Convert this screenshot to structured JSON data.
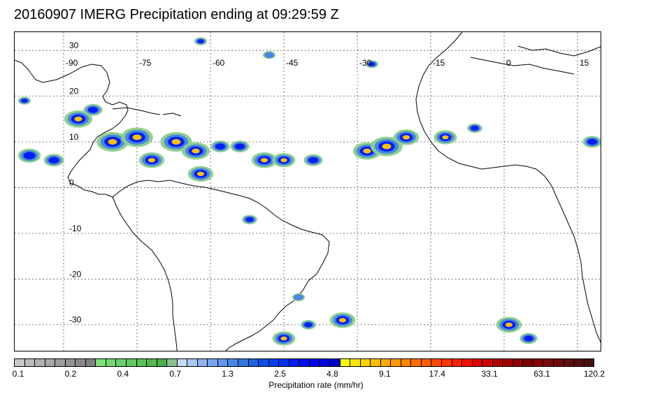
{
  "title": "20160907 IMERG Precipitation ending at 09:29:59 Z",
  "map": {
    "lon_labels": [
      "-90",
      "-75",
      "-60",
      "-45",
      "-30",
      "-15",
      "0",
      "15"
    ],
    "lat_labels": [
      "30",
      "20",
      "10",
      "0",
      "-10",
      "-20",
      "-30"
    ],
    "grid_color": "#555555",
    "coast_color": "#000000"
  },
  "colorbar": {
    "label": "Precipitation rate (mm/hr)",
    "tick_labels": [
      "0.1",
      "0.2",
      "0.4",
      "0.7",
      "1.3",
      "2.5",
      "4.8",
      "9.1",
      "17.4",
      "33.1",
      "63.1",
      "120.2"
    ],
    "colors": [
      "#c8c8c8",
      "#bdbdbd",
      "#b2b2b2",
      "#a8a8a8",
      "#9d9d9d",
      "#939393",
      "#898989",
      "#808080",
      "#7ee07e",
      "#74d874",
      "#6bd06b",
      "#62c862",
      "#5ac05a",
      "#52b852",
      "#4ab04a",
      "#8bc28b",
      "#c8d8f8",
      "#aac6f4",
      "#8eb4f0",
      "#78a6ec",
      "#6096e8",
      "#4a86e4",
      "#3476e0",
      "#1e66dc",
      "#0a50e8",
      "#0040ec",
      "#0030f0",
      "#0020f4",
      "#0010f0",
      "#0000f0",
      "#0000e0",
      "#0000cc",
      "#ffff00",
      "#ffe800",
      "#ffd400",
      "#ffc000",
      "#ffac00",
      "#ff9800",
      "#ff8400",
      "#ff7000",
      "#ff5c00",
      "#ff4800",
      "#ff3400",
      "#ff2000",
      "#f41000",
      "#e00000",
      "#cc0000",
      "#b80000",
      "#a40000",
      "#900000",
      "#7c0000",
      "#880000",
      "#7a0a0a",
      "#6c0c0c",
      "#5e0e0e",
      "#521010",
      "#461010"
    ]
  },
  "precip_cells": [
    {
      "lon": -87,
      "lat": 15,
      "r": 2.2,
      "level": 3
    },
    {
      "lon": -84,
      "lat": 17,
      "r": 1.5,
      "level": 2
    },
    {
      "lon": -80,
      "lat": 10,
      "r": 2.5,
      "level": 3
    },
    {
      "lon": -75,
      "lat": 11,
      "r": 2.5,
      "level": 3
    },
    {
      "lon": -72,
      "lat": 6,
      "r": 2.0,
      "level": 3
    },
    {
      "lon": -67,
      "lat": 10,
      "r": 2.5,
      "level": 3
    },
    {
      "lon": -63,
      "lat": 8,
      "r": 2.2,
      "level": 3
    },
    {
      "lon": -62,
      "lat": 3,
      "r": 2.0,
      "level": 3
    },
    {
      "lon": -58,
      "lat": 9,
      "r": 1.5,
      "level": 2
    },
    {
      "lon": -54,
      "lat": 9,
      "r": 1.5,
      "level": 2
    },
    {
      "lon": -49,
      "lat": 6,
      "r": 2.0,
      "level": 3
    },
    {
      "lon": -45,
      "lat": 6,
      "r": 1.8,
      "level": 3
    },
    {
      "lon": -39,
      "lat": 6,
      "r": 1.5,
      "level": 2
    },
    {
      "lon": -28,
      "lat": 8,
      "r": 2.2,
      "level": 3
    },
    {
      "lon": -24,
      "lat": 9,
      "r": 2.5,
      "level": 3
    },
    {
      "lon": -20,
      "lat": 11,
      "r": 2.0,
      "level": 3
    },
    {
      "lon": -12,
      "lat": 11,
      "r": 1.8,
      "level": 3
    },
    {
      "lon": -6,
      "lat": 13,
      "r": 1.2,
      "level": 2
    },
    {
      "lon": -27,
      "lat": 27,
      "r": 1.0,
      "level": 2
    },
    {
      "lon": -62,
      "lat": 32,
      "r": 1.0,
      "level": 2
    },
    {
      "lon": -48,
      "lat": 29,
      "r": 1.0,
      "level": 1
    },
    {
      "lon": -33,
      "lat": -29,
      "r": 2.0,
      "level": 3
    },
    {
      "lon": -40,
      "lat": -30,
      "r": 1.2,
      "level": 2
    },
    {
      "lon": -45,
      "lat": -33,
      "r": 1.8,
      "level": 3
    },
    {
      "lon": 1,
      "lat": -30,
      "r": 2.0,
      "level": 3
    },
    {
      "lon": 5,
      "lat": -33,
      "r": 1.4,
      "level": 2
    },
    {
      "lon": -98,
      "lat": 19,
      "r": 1.0,
      "level": 2
    },
    {
      "lon": -97,
      "lat": 7,
      "r": 1.8,
      "level": 2
    },
    {
      "lon": -92,
      "lat": 6,
      "r": 1.6,
      "level": 2
    },
    {
      "lon": 18,
      "lat": 10,
      "r": 1.5,
      "level": 2
    },
    {
      "lon": -52,
      "lat": -7,
      "r": 1.2,
      "level": 2
    },
    {
      "lon": -42,
      "lat": -24,
      "r": 1.0,
      "level": 1
    }
  ]
}
